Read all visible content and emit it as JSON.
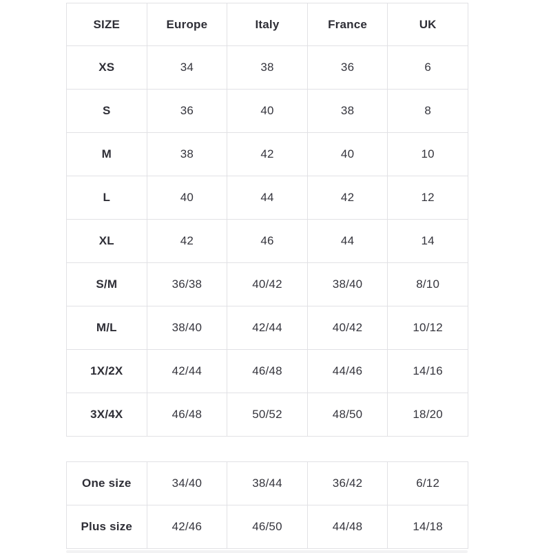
{
  "chart_data": {
    "type": "table",
    "title": "",
    "columns": [
      "SIZE",
      "Europe",
      "Italy",
      "France",
      "UK"
    ],
    "main_rows": [
      [
        "XS",
        "34",
        "38",
        "36",
        "6"
      ],
      [
        "S",
        "36",
        "40",
        "38",
        "8"
      ],
      [
        "M",
        "38",
        "42",
        "40",
        "10"
      ],
      [
        "L",
        "40",
        "44",
        "42",
        "12"
      ],
      [
        "XL",
        "42",
        "46",
        "44",
        "14"
      ],
      [
        "S/M",
        "36/38",
        "40/42",
        "38/40",
        "8/10"
      ],
      [
        "M/L",
        "38/40",
        "42/44",
        "40/42",
        "10/12"
      ],
      [
        "1X/2X",
        "42/44",
        "46/48",
        "44/46",
        "14/16"
      ],
      [
        "3X/4X",
        "46/48",
        "50/52",
        "48/50",
        "18/20"
      ]
    ],
    "secondary_rows": [
      [
        "One size",
        "34/40",
        "38/44",
        "36/42",
        "6/12"
      ],
      [
        "Plus size",
        "42/46",
        "46/50",
        "44/48",
        "14/18"
      ]
    ],
    "layout": {
      "grid": "full-borders",
      "header_bold": true,
      "first_column_bold": true
    }
  },
  "colors": {
    "background": "#ffffff",
    "border": "#e1e1e5",
    "text": "#35353d",
    "header_text": "#2e2e36",
    "scrollbar_track": "#f2f2f3"
  }
}
